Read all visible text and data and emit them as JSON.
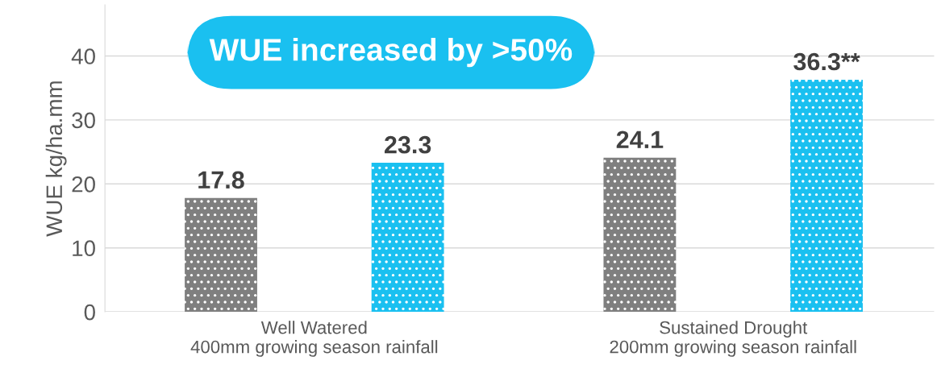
{
  "chart_data": {
    "type": "bar",
    "ylabel": "WUE kg/ha.mm",
    "categories": [
      "Well Watered\n400mm growing season rainfall",
      "Sustained Drought\n200mm growing season rainfall"
    ],
    "series": [
      {
        "color": "#7f7f7f",
        "values": [
          17.8,
          24.1
        ],
        "value_labels": [
          "17.8",
          "24.1"
        ]
      },
      {
        "color": "#1ac0f0",
        "values": [
          23.3,
          36.3
        ],
        "value_labels": [
          "23.3",
          "36.3**"
        ]
      }
    ],
    "ylim": [
      0,
      48
    ],
    "yticks": [
      0,
      10,
      20,
      30,
      40
    ],
    "grid": "y",
    "annotations": [
      "WUE increased by >50%"
    ]
  }
}
